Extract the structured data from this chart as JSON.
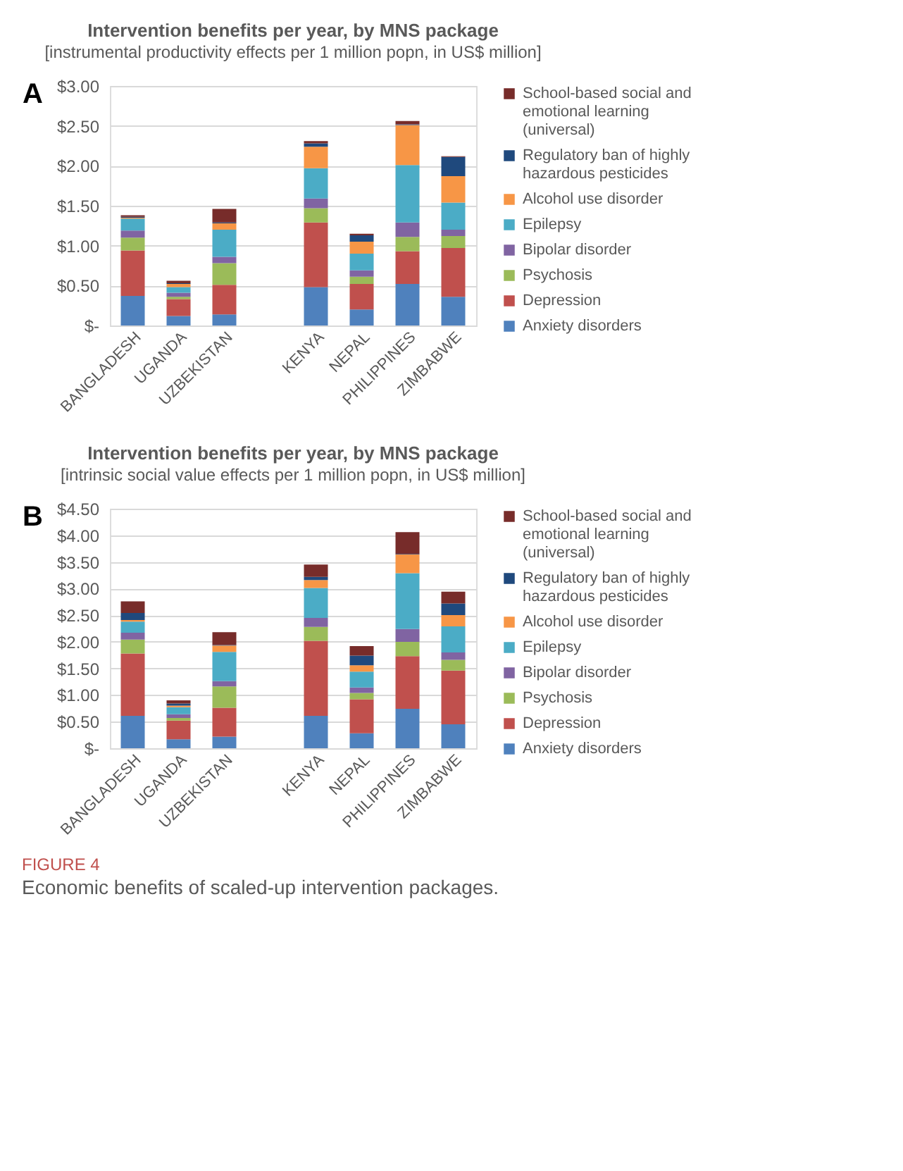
{
  "chart_data": [
    {
      "type": "bar",
      "stacked": true,
      "title": "Intervention benefits per year, by MNS package",
      "subtitle": "[instrumental productivity effects per 1 million popn, in US$ million]",
      "annotations": [
        "A"
      ],
      "categories": [
        "BANGLADESH",
        "UGANDA",
        "UZBEKISTAN",
        null,
        "KENYA",
        "NEPAL",
        "PHILIPPINES",
        "ZIMBABWE"
      ],
      "series": [
        {
          "name": "Anxiety disorders",
          "color": "#4f81bd",
          "values": [
            0.37,
            0.12,
            0.14,
            null,
            0.48,
            0.2,
            0.52,
            0.36
          ]
        },
        {
          "name": "Depression",
          "color": "#c0504d",
          "values": [
            0.57,
            0.21,
            0.37,
            null,
            0.81,
            0.32,
            0.41,
            0.61
          ]
        },
        {
          "name": "Psychosis",
          "color": "#9bbb59",
          "values": [
            0.16,
            0.03,
            0.27,
            null,
            0.18,
            0.09,
            0.18,
            0.15
          ]
        },
        {
          "name": "Bipolar disorder",
          "color": "#8064a2",
          "values": [
            0.09,
            0.05,
            0.08,
            null,
            0.12,
            0.08,
            0.18,
            0.08
          ]
        },
        {
          "name": "Epilepsy",
          "color": "#4bacc6",
          "values": [
            0.15,
            0.07,
            0.34,
            null,
            0.38,
            0.21,
            0.72,
            0.34
          ]
        },
        {
          "name": "Alcohol use disorder",
          "color": "#f79646",
          "values": [
            0.01,
            0.04,
            0.08,
            null,
            0.27,
            0.15,
            0.5,
            0.33
          ]
        },
        {
          "name": "Regulatory ban of highly hazardous pesticides",
          "color": "#1f497d",
          "values": [
            0.01,
            0.01,
            0.01,
            null,
            0.04,
            0.08,
            0.01,
            0.24
          ]
        },
        {
          "name": "School-based social and emotional learning (universal)",
          "color": "#772c2a",
          "values": [
            0.02,
            0.03,
            0.17,
            null,
            0.03,
            0.02,
            0.04,
            0.01
          ]
        }
      ],
      "ylim": [
        0,
        3
      ],
      "yticks": [
        {
          "value": 0,
          "label": "$-"
        },
        {
          "value": 0.5,
          "label": "$0.50"
        },
        {
          "value": 1,
          "label": "$1.00"
        },
        {
          "value": 1.5,
          "label": "$1.50"
        },
        {
          "value": 2,
          "label": "$2.00"
        },
        {
          "value": 2.5,
          "label": "$2.50"
        },
        {
          "value": 3,
          "label": "$3.00"
        }
      ],
      "grid": "y",
      "legend": "right"
    },
    {
      "type": "bar",
      "stacked": true,
      "title": "Intervention benefits per year, by MNS package",
      "subtitle": "[intrinsic social value effects per 1 million popn, in US$ million]",
      "annotations": [
        "B",
        "FIGURE 4",
        "Economic benefits of scaled-up intervention packages."
      ],
      "categories": [
        "BANGLADESH",
        "UGANDA",
        "UZBEKISTAN",
        null,
        "KENYA",
        "NEPAL",
        "PHILIPPINES",
        "ZIMBABWE"
      ],
      "series": [
        {
          "name": "Anxiety disorders",
          "color": "#4f81bd",
          "values": [
            0.61,
            0.17,
            0.22,
            null,
            0.61,
            0.28,
            0.74,
            0.45
          ]
        },
        {
          "name": "Depression",
          "color": "#c0504d",
          "values": [
            1.17,
            0.35,
            0.54,
            null,
            1.41,
            0.64,
            0.99,
            1.01
          ]
        },
        {
          "name": "Psychosis",
          "color": "#9bbb59",
          "values": [
            0.26,
            0.05,
            0.4,
            null,
            0.26,
            0.12,
            0.27,
            0.2
          ]
        },
        {
          "name": "Bipolar disorder",
          "color": "#8064a2",
          "values": [
            0.13,
            0.07,
            0.1,
            null,
            0.17,
            0.1,
            0.24,
            0.14
          ]
        },
        {
          "name": "Epilepsy",
          "color": "#4bacc6",
          "values": [
            0.21,
            0.13,
            0.55,
            null,
            0.56,
            0.3,
            1.05,
            0.49
          ]
        },
        {
          "name": "Alcohol use disorder",
          "color": "#f79646",
          "values": [
            0.03,
            0.03,
            0.12,
            null,
            0.15,
            0.12,
            0.35,
            0.21
          ]
        },
        {
          "name": "Regulatory ban of highly hazardous pesticides",
          "color": "#1f497d",
          "values": [
            0.13,
            0.04,
            0.01,
            null,
            0.06,
            0.18,
            0.01,
            0.22
          ]
        },
        {
          "name": "School-based social and emotional learning (universal)",
          "color": "#772c2a",
          "values": [
            0.22,
            0.06,
            0.24,
            null,
            0.23,
            0.18,
            0.41,
            0.22
          ]
        }
      ],
      "ylim": [
        0,
        4.5
      ],
      "yticks": [
        {
          "value": 0,
          "label": "$-"
        },
        {
          "value": 0.5,
          "label": "$0.50"
        },
        {
          "value": 1,
          "label": "$1.00"
        },
        {
          "value": 1.5,
          "label": "$1.50"
        },
        {
          "value": 2,
          "label": "$2.00"
        },
        {
          "value": 2.5,
          "label": "$2.50"
        },
        {
          "value": 3,
          "label": "$3.00"
        },
        {
          "value": 3.5,
          "label": "$3.50"
        },
        {
          "value": 4,
          "label": "$4.00"
        },
        {
          "value": 4.5,
          "label": "$4.50"
        }
      ],
      "grid": "y",
      "legend": "right"
    }
  ]
}
